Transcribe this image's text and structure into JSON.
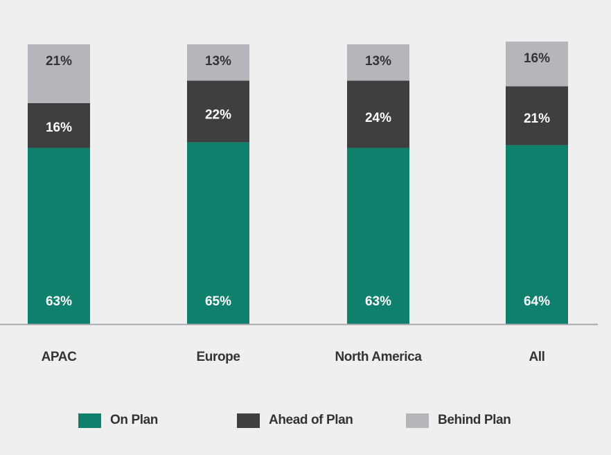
{
  "chart_data": {
    "type": "bar",
    "stacked": true,
    "percent_stacked": true,
    "categories": [
      "APAC",
      "Europe",
      "North America",
      "All"
    ],
    "series": [
      {
        "name": "On Plan",
        "color": "#0e806c",
        "label_color": "#ffffff",
        "values": [
          63,
          65,
          63,
          64
        ],
        "labels": [
          "63%",
          "65%",
          "63%",
          "64%"
        ]
      },
      {
        "name": "Ahead of Plan",
        "color": "#3f3f3f",
        "label_color": "#ffffff",
        "values": [
          16,
          22,
          24,
          21
        ],
        "labels": [
          "16%",
          "22%",
          "24%",
          "21%"
        ]
      },
      {
        "name": "Behind Plan",
        "color": "#b5b5bb",
        "label_color": "#333333",
        "values": [
          21,
          13,
          13,
          16
        ],
        "labels": [
          "21%",
          "13%",
          "13%",
          "16%"
        ]
      }
    ],
    "ylim": [
      0,
      100
    ],
    "grid": false,
    "legend_position": "bottom",
    "title": "",
    "xlabel": "",
    "ylabel": ""
  },
  "colors": {
    "background": "#efefef",
    "baseline": "#a8a8b0",
    "category_text": "#333333"
  }
}
